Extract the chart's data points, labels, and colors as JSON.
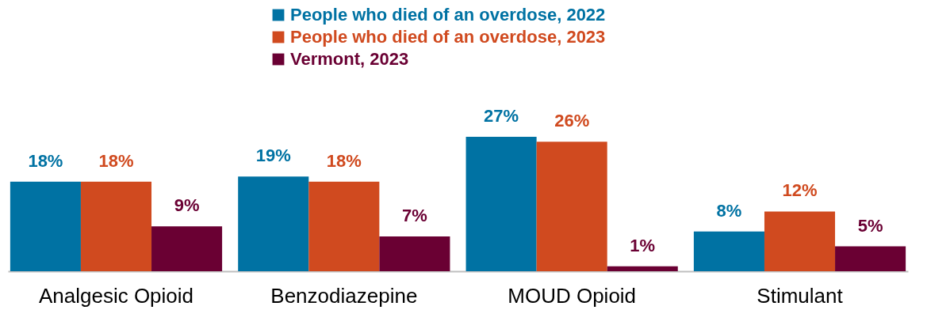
{
  "chart_data": {
    "type": "bar",
    "categories": [
      "Analgesic Opioid",
      "Benzodiazepine",
      "MOUD Opioid",
      "Stimulant"
    ],
    "series": [
      {
        "name": "People who died of an overdose, 2022",
        "color": "#0072a3",
        "values": [
          18,
          19,
          27,
          8
        ],
        "value_labels": [
          "18%",
          "19%",
          "27%",
          "8%"
        ]
      },
      {
        "name": "People who died of an overdose, 2023",
        "color": "#d04a1f",
        "values": [
          18,
          18,
          26,
          12
        ],
        "value_labels": [
          "18%",
          "18%",
          "26%",
          "12%"
        ]
      },
      {
        "name": "Vermont, 2023",
        "color": "#6a0033",
        "values": [
          9,
          7,
          1,
          5
        ],
        "value_labels": [
          "9%",
          "7%",
          "1%",
          "5%"
        ]
      }
    ],
    "legend": "top"
  }
}
